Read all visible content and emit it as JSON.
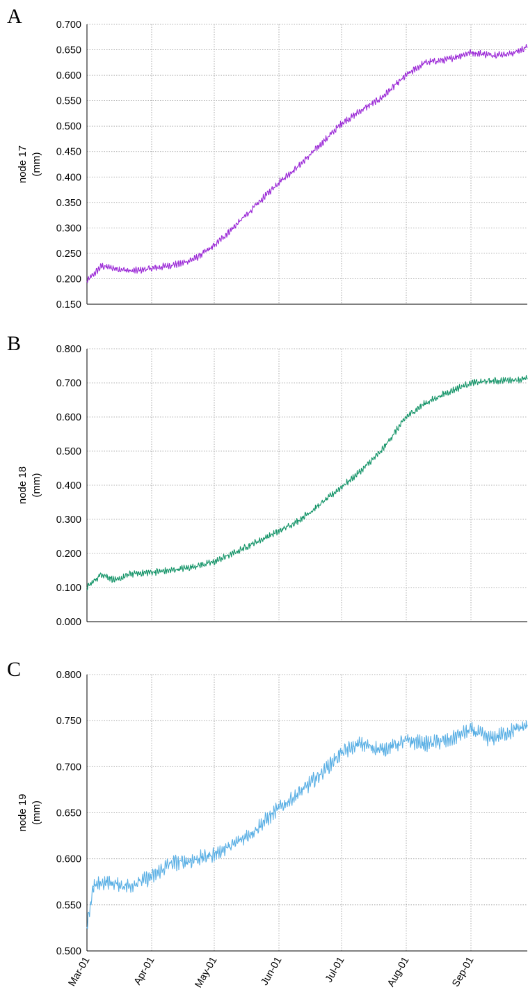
{
  "chart_data": [
    {
      "type": "line",
      "panel": "A",
      "ylabel": "node 17",
      "yunit": "(mm)",
      "ylim": [
        0.15,
        0.7
      ],
      "yticks": [
        "0.700",
        "0.650",
        "0.600",
        "0.550",
        "0.500",
        "0.450",
        "0.400",
        "0.350",
        "0.300",
        "0.250",
        "0.200",
        "0.150"
      ],
      "xlim": [
        "2001-03-01",
        "2001-09-28"
      ],
      "xticks": [
        "Mar-01",
        "Apr-01",
        "May-01",
        "Jun-01",
        "Jul-01",
        "Aug-01",
        "Sep-01"
      ],
      "grid": true,
      "color": "#9a27d6",
      "series": [
        {
          "x": [
            "2001-03-01",
            "2001-03-08",
            "2001-03-15",
            "2001-03-22",
            "2001-04-01",
            "2001-04-08",
            "2001-04-15",
            "2001-04-22",
            "2001-05-01",
            "2001-05-10",
            "2001-05-20",
            "2001-06-01",
            "2001-06-10",
            "2001-06-20",
            "2001-07-01",
            "2001-07-10",
            "2001-07-20",
            "2001-08-01",
            "2001-08-10",
            "2001-08-20",
            "2001-09-01",
            "2001-09-10",
            "2001-09-20",
            "2001-09-28"
          ],
          "y": [
            0.195,
            0.225,
            0.22,
            0.215,
            0.22,
            0.225,
            0.23,
            0.24,
            0.265,
            0.3,
            0.34,
            0.39,
            0.42,
            0.46,
            0.505,
            0.53,
            0.555,
            0.6,
            0.625,
            0.63,
            0.645,
            0.64,
            0.642,
            0.655
          ]
        }
      ]
    },
    {
      "type": "line",
      "panel": "B",
      "ylabel": "node 18",
      "yunit": "(mm)",
      "ylim": [
        0.0,
        0.8
      ],
      "yticks": [
        "0.800",
        "0.700",
        "0.600",
        "0.500",
        "0.400",
        "0.300",
        "0.200",
        "0.100",
        "0.000"
      ],
      "xlim": [
        "2001-03-01",
        "2001-09-28"
      ],
      "xticks": [
        "Mar-01",
        "Apr-01",
        "May-01",
        "Jun-01",
        "Jul-01",
        "Aug-01",
        "Sep-01"
      ],
      "grid": true,
      "color": "#149468",
      "series": [
        {
          "x": [
            "2001-03-01",
            "2001-03-08",
            "2001-03-15",
            "2001-03-22",
            "2001-04-01",
            "2001-04-10",
            "2001-04-20",
            "2001-05-01",
            "2001-05-10",
            "2001-05-20",
            "2001-06-01",
            "2001-06-10",
            "2001-06-20",
            "2001-07-01",
            "2001-07-10",
            "2001-07-20",
            "2001-08-01",
            "2001-08-10",
            "2001-08-20",
            "2001-09-01",
            "2001-09-10",
            "2001-09-20",
            "2001-09-28"
          ],
          "y": [
            0.1,
            0.14,
            0.12,
            0.14,
            0.145,
            0.15,
            0.16,
            0.175,
            0.2,
            0.23,
            0.265,
            0.295,
            0.34,
            0.395,
            0.44,
            0.5,
            0.6,
            0.64,
            0.67,
            0.7,
            0.705,
            0.708,
            0.712
          ]
        }
      ]
    },
    {
      "type": "line",
      "panel": "C",
      "ylabel": "node 19",
      "yunit": "(mm)",
      "ylim": [
        0.5,
        0.8
      ],
      "yticks": [
        "0.800",
        "0.750",
        "0.700",
        "0.650",
        "0.600",
        "0.550",
        "0.500"
      ],
      "xlim": [
        "2001-03-01",
        "2001-09-28"
      ],
      "xticks": [
        "Mar-01",
        "Apr-01",
        "May-01",
        "Jun-01",
        "Jul-01",
        "Aug-01",
        "Sep-01"
      ],
      "grid": true,
      "color": "#5aafe4",
      "series": [
        {
          "x": [
            "2001-03-01",
            "2001-03-04",
            "2001-03-10",
            "2001-03-20",
            "2001-04-01",
            "2001-04-10",
            "2001-04-20",
            "2001-05-01",
            "2001-05-10",
            "2001-05-20",
            "2001-06-01",
            "2001-06-10",
            "2001-06-20",
            "2001-07-01",
            "2001-07-10",
            "2001-07-20",
            "2001-08-01",
            "2001-08-10",
            "2001-08-20",
            "2001-09-01",
            "2001-09-10",
            "2001-09-20",
            "2001-09-28"
          ],
          "y": [
            0.525,
            0.57,
            0.575,
            0.57,
            0.58,
            0.595,
            0.598,
            0.605,
            0.615,
            0.63,
            0.655,
            0.67,
            0.69,
            0.715,
            0.725,
            0.718,
            0.728,
            0.725,
            0.728,
            0.74,
            0.73,
            0.738,
            0.745
          ]
        }
      ]
    }
  ]
}
